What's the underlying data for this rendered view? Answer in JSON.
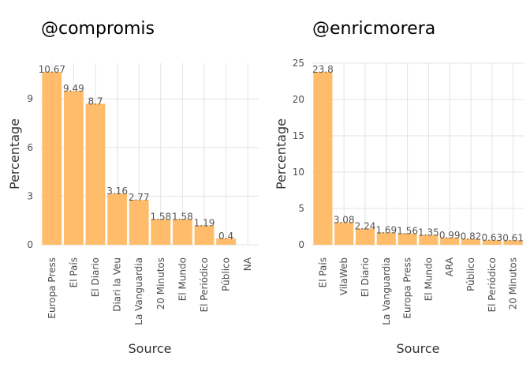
{
  "chart_data": [
    {
      "type": "bar",
      "title": "@compromis",
      "xlabel": "Source",
      "ylabel": "Percentage",
      "categories": [
        "Europa Press",
        "El País",
        "El Diario",
        "Diari la Veu",
        "La Vanguardia",
        "20 Minutos",
        "El Mundo",
        "El Periódico",
        "Público",
        "NA"
      ],
      "values": [
        10.67,
        9.49,
        8.7,
        3.16,
        2.77,
        1.58,
        1.58,
        1.19,
        0.4,
        null
      ],
      "value_labels": [
        "10.67",
        "9.49",
        "8.7",
        "3.16",
        "2.77",
        "1.58",
        "1.58",
        "1.19",
        "0.4",
        ""
      ],
      "ylim": [
        0,
        11.2
      ],
      "yticks": [
        0,
        3,
        6,
        9
      ],
      "grid": true,
      "bar_color": "#FFB55A"
    },
    {
      "type": "bar",
      "title": "@enricmorera",
      "xlabel": "Source",
      "ylabel": "Percentage",
      "categories": [
        "El País",
        "VilaWeb",
        "El Diario",
        "La Vanguardia",
        "Europa Press",
        "El Mundo",
        "ARA",
        "Público",
        "El Periódico",
        "20 Minutos"
      ],
      "values": [
        23.8,
        3.08,
        2.24,
        1.69,
        1.56,
        1.35,
        0.99,
        0.82,
        0.63,
        0.61
      ],
      "value_labels": [
        "23.8",
        "3.08",
        "2.24",
        "1.69",
        "1.56",
        "1.35",
        "0.99",
        "0.82",
        "0.63",
        "0.61"
      ],
      "ylim": [
        0,
        25
      ],
      "yticks": [
        0,
        5,
        10,
        15,
        20,
        25
      ],
      "grid": true,
      "bar_color": "#FFB55A"
    }
  ]
}
